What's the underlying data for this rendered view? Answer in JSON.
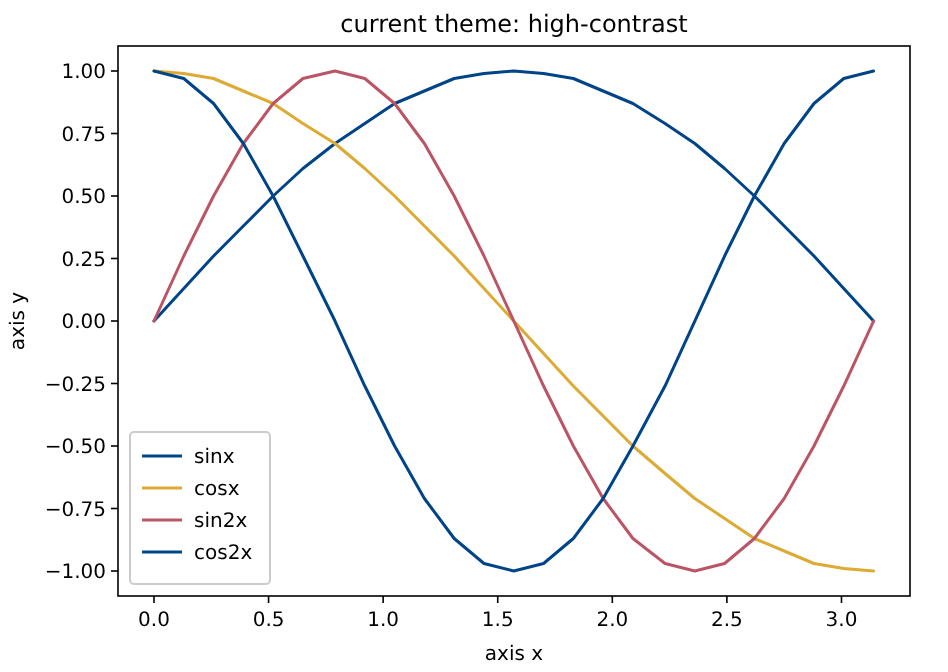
{
  "chart_data": {
    "type": "line",
    "title": "current theme: high-contrast",
    "xlabel": "axis x",
    "ylabel": "axis y",
    "x": [
      0,
      0.13,
      0.26,
      0.39,
      0.52,
      0.65,
      0.79,
      0.92,
      1.05,
      1.18,
      1.31,
      1.44,
      1.57,
      1.7,
      1.83,
      1.96,
      2.09,
      2.23,
      2.36,
      2.49,
      2.62,
      2.75,
      2.88,
      3.01,
      3.14
    ],
    "series": [
      {
        "name": "sinx",
        "color": "#004488",
        "values": [
          0,
          0.13,
          0.26,
          0.38,
          0.5,
          0.61,
          0.71,
          0.79,
          0.87,
          0.92,
          0.97,
          0.99,
          1,
          0.99,
          0.97,
          0.92,
          0.87,
          0.79,
          0.71,
          0.61,
          0.5,
          0.38,
          0.26,
          0.13,
          0
        ]
      },
      {
        "name": "cosx",
        "color": "#ddaa33",
        "values": [
          1,
          0.99,
          0.97,
          0.92,
          0.87,
          0.79,
          0.71,
          0.61,
          0.5,
          0.38,
          0.26,
          0.13,
          0,
          -0.13,
          -0.26,
          -0.38,
          -0.5,
          -0.61,
          -0.71,
          -0.79,
          -0.87,
          -0.92,
          -0.97,
          -0.99,
          -1
        ]
      },
      {
        "name": "sin2x",
        "color": "#bb5566",
        "values": [
          0,
          0.26,
          0.5,
          0.71,
          0.87,
          0.97,
          1,
          0.97,
          0.87,
          0.71,
          0.5,
          0.26,
          0,
          -0.26,
          -0.5,
          -0.71,
          -0.87,
          -0.97,
          -1,
          -0.97,
          -0.87,
          -0.71,
          -0.5,
          -0.26,
          0
        ]
      },
      {
        "name": "cos2x",
        "color": "#004488",
        "values": [
          1,
          0.97,
          0.87,
          0.71,
          0.5,
          0.26,
          0,
          -0.26,
          -0.5,
          -0.71,
          -0.87,
          -0.97,
          -1,
          -0.97,
          -0.87,
          -0.71,
          -0.5,
          -0.26,
          0,
          0.26,
          0.5,
          0.71,
          0.87,
          0.97,
          1
        ]
      }
    ],
    "xlim": [
      -0.157,
      3.299
    ],
    "ylim": [
      -1.1,
      1.1
    ],
    "xticks": [
      {
        "value": 0,
        "label": "0.0"
      },
      {
        "value": 0.5,
        "label": "0.5"
      },
      {
        "value": 1,
        "label": "1.0"
      },
      {
        "value": 1.5,
        "label": "1.5"
      },
      {
        "value": 2,
        "label": "2.0"
      },
      {
        "value": 2.5,
        "label": "2.5"
      },
      {
        "value": 3,
        "label": "3.0"
      }
    ],
    "yticks": [
      {
        "value": -1,
        "label": "−1.00"
      },
      {
        "value": -0.75,
        "label": "−0.75"
      },
      {
        "value": -0.5,
        "label": "−0.50"
      },
      {
        "value": -0.25,
        "label": "−0.25"
      },
      {
        "value": 0,
        "label": "0.00"
      },
      {
        "value": 0.25,
        "label": "0.25"
      },
      {
        "value": 0.5,
        "label": "0.50"
      },
      {
        "value": 0.75,
        "label": "0.75"
      },
      {
        "value": 1,
        "label": "1.00"
      }
    ],
    "legend": "bottom left",
    "marker": "none",
    "line_style": "solid"
  }
}
